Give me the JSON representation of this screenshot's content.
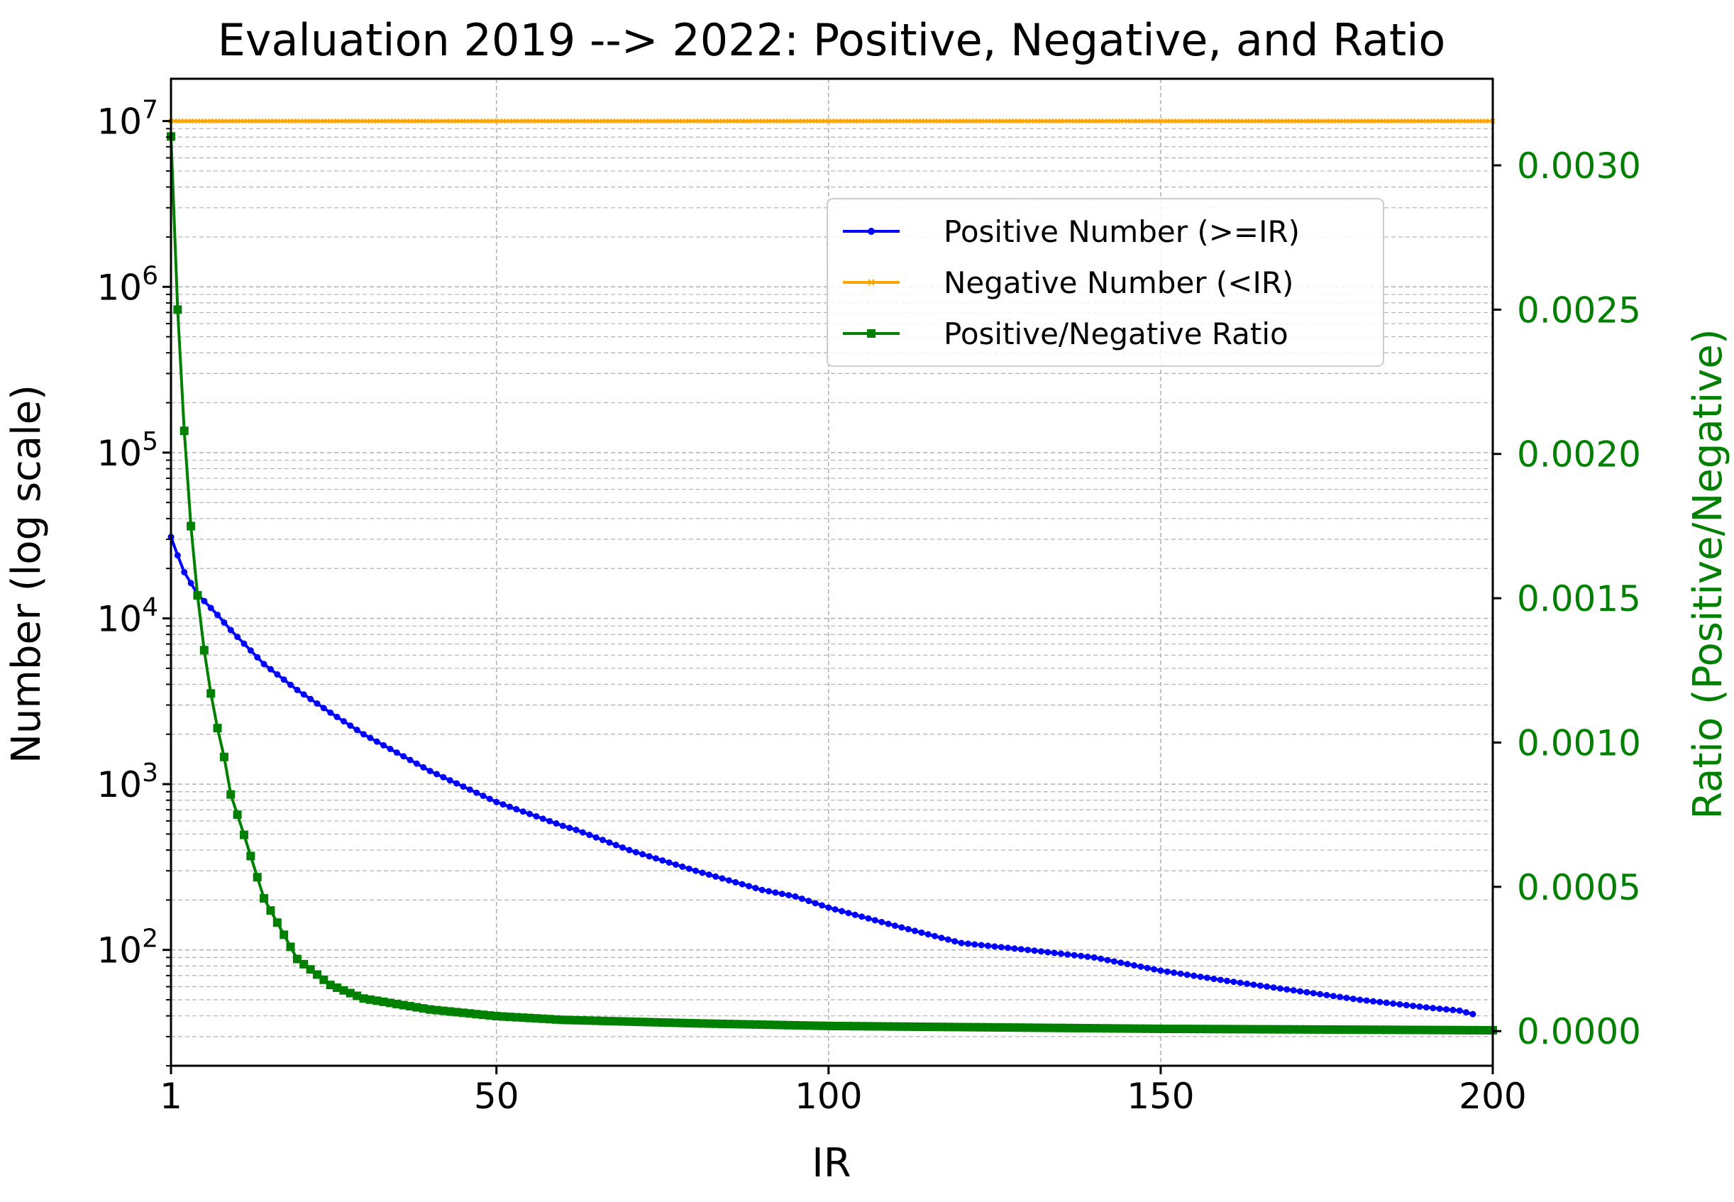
{
  "chart_data": {
    "type": "line",
    "title": "Evaluation 2019 --> 2022: Positive, Negative, and Ratio",
    "xlabel": "IR",
    "ylabel": "Number (log scale)",
    "y2label": "Ratio (Positive/Negative)",
    "xlim": [
      1,
      200
    ],
    "xticks": [
      1,
      50,
      100,
      150,
      200
    ],
    "ylim": [
      20,
      18000000
    ],
    "yscale": "log",
    "yticks": [
      {
        "value": 100,
        "base": "10",
        "exp": "2"
      },
      {
        "value": 1000,
        "base": "10",
        "exp": "3"
      },
      {
        "value": 10000,
        "base": "10",
        "exp": "4"
      },
      {
        "value": 100000,
        "base": "10",
        "exp": "5"
      },
      {
        "value": 1000000,
        "base": "10",
        "exp": "6"
      },
      {
        "value": 10000000,
        "base": "10",
        "exp": "7"
      }
    ],
    "y2lim": [
      -0.00012,
      0.0033
    ],
    "y2ticks": [
      {
        "value": 0.0,
        "label": "0.0000"
      },
      {
        "value": 0.0005,
        "label": "0.0005"
      },
      {
        "value": 0.001,
        "label": "0.0010"
      },
      {
        "value": 0.0015,
        "label": "0.0015"
      },
      {
        "value": 0.002,
        "label": "0.0020"
      },
      {
        "value": 0.0025,
        "label": "0.0025"
      },
      {
        "value": 0.003,
        "label": "0.0030"
      }
    ],
    "grid": true,
    "legend_position": "upper-right",
    "series": [
      {
        "name": "Positive Number (>=IR)",
        "axis": "left",
        "color": "#0000ff",
        "marker": "circle",
        "x": [
          1,
          2,
          3,
          5,
          8,
          10,
          15,
          20,
          25,
          30,
          40,
          50,
          60,
          62,
          70,
          80,
          90,
          95,
          100,
          110,
          120,
          130,
          140,
          150,
          160,
          170,
          180,
          190,
          195,
          197
        ],
        "y": [
          31000,
          24000,
          19000,
          14000,
          10500,
          8500,
          5300,
          3700,
          2700,
          2000,
          1200,
          780,
          560,
          530,
          400,
          300,
          230,
          210,
          180,
          140,
          110,
          100,
          90,
          75,
          65,
          57,
          50,
          45,
          43,
          41
        ]
      },
      {
        "name": "Negative Number (<IR)",
        "axis": "left",
        "color": "#ffa500",
        "marker": "x",
        "x": [
          1,
          200
        ],
        "y": [
          10000000,
          10000000
        ]
      },
      {
        "name": "Positive/Negative Ratio",
        "axis": "right",
        "color": "#008000",
        "marker": "square",
        "x": [
          1,
          2,
          3,
          4,
          5,
          6,
          7,
          8,
          9,
          10,
          12,
          15,
          20,
          25,
          30,
          40,
          50,
          60,
          80,
          100,
          150,
          200
        ],
        "y": [
          0.0031,
          0.0025,
          0.00208,
          0.00175,
          0.00151,
          0.00132,
          0.00117,
          0.00105,
          0.00095,
          0.00082,
          0.00068,
          0.00046,
          0.00025,
          0.00016,
          0.000113,
          7.5e-05,
          5.2e-05,
          3.9e-05,
          2.7e-05,
          1.8e-05,
          8e-06,
          3e-06
        ]
      }
    ]
  }
}
